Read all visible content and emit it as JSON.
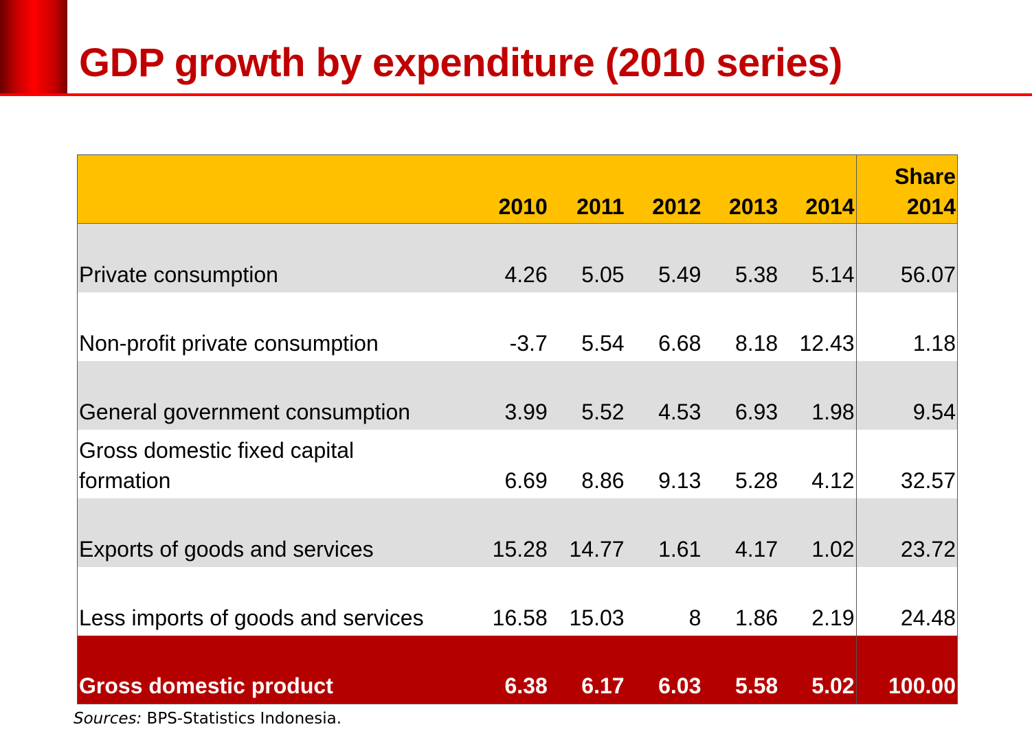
{
  "title": "GDP growth by expenditure (2010 series)",
  "colors": {
    "title": "#c00000",
    "header_bg": "#ffc000",
    "shade_bg": "#dedede",
    "total_bg": "#b50000",
    "rule": "#ff0000"
  },
  "table": {
    "columns": [
      "",
      "2010",
      "2011",
      "2012",
      "2013",
      "2014",
      "Share 2014"
    ],
    "header": {
      "label": "",
      "y2010": "2010",
      "y2011": "2011",
      "y2012": "2012",
      "y2013": "2013",
      "y2014": "2014",
      "share_line1": "Share",
      "share_line2": "2014"
    },
    "rows": [
      {
        "label": "Private consumption",
        "values": [
          "4.26",
          "5.05",
          "5.49",
          "5.38",
          "5.14"
        ],
        "share": "56.07"
      },
      {
        "label": "Non-profit private consumption",
        "values": [
          "-3.7",
          "5.54",
          "6.68",
          "8.18",
          "12.43"
        ],
        "share": "1.18"
      },
      {
        "label": "General government consumption",
        "values": [
          "3.99",
          "5.52",
          "4.53",
          "6.93",
          "1.98"
        ],
        "share": "9.54"
      },
      {
        "label_line1": "Gross domestic fixed capital",
        "label_line2": "formation",
        "values": [
          "6.69",
          "8.86",
          "9.13",
          "5.28",
          "4.12"
        ],
        "share": "32.57"
      },
      {
        "label": "Exports of goods and services",
        "values": [
          "15.28",
          "14.77",
          "1.61",
          "4.17",
          "1.02"
        ],
        "share": "23.72"
      },
      {
        "label": "Less imports of goods and services",
        "values": [
          "16.58",
          "15.03",
          "8",
          "1.86",
          "2.19"
        ],
        "share": "24.48"
      }
    ],
    "total": {
      "label": "Gross domestic product",
      "values": [
        "6.38",
        "6.17",
        "6.03",
        "5.58",
        "5.02"
      ],
      "share": "100.00"
    }
  },
  "source": {
    "prefix": "Sources:",
    "text": " BPS-Statistics Indonesia."
  }
}
